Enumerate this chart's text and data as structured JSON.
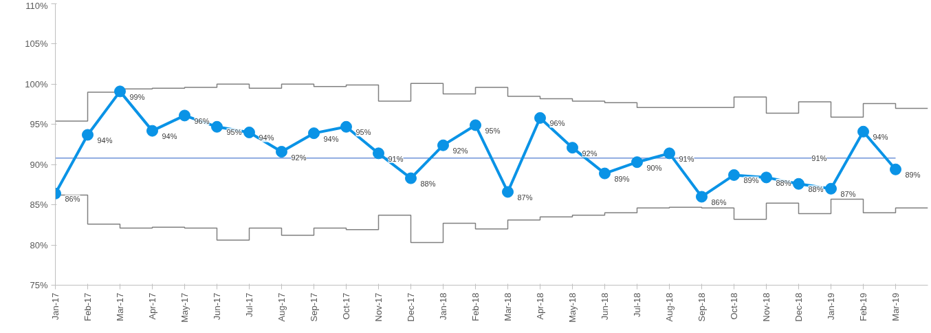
{
  "chart_data": {
    "type": "line",
    "categories": [
      "Jan-17",
      "Feb-17",
      "Mar-17",
      "Apr-17",
      "May-17",
      "Jun-17",
      "Jul-17",
      "Aug-17",
      "Sep-17",
      "Oct-17",
      "Nov-17",
      "Dec-17",
      "Jan-18",
      "Feb-18",
      "Mar-18",
      "Apr-18",
      "May-18",
      "Jun-18",
      "Jul-18",
      "Aug-18",
      "Sep-18",
      "Oct-18",
      "Nov-18",
      "Dec-18",
      "Jan-19",
      "Feb-19",
      "Mar-19"
    ],
    "series": [
      {
        "color": "#0a93e6",
        "marker": "circle",
        "values": [
          86.4,
          93.7,
          99.1,
          94.2,
          96.1,
          94.7,
          94.0,
          91.6,
          93.9,
          94.7,
          91.4,
          88.3,
          92.4,
          94.9,
          86.6,
          95.8,
          92.1,
          88.9,
          90.3,
          91.4,
          86.0,
          88.7,
          88.4,
          87.6,
          87.0,
          94.1,
          89.4
        ],
        "value_labels": [
          "86%",
          "94%",
          "99%",
          "94%",
          "96%",
          "95%",
          "94%",
          "92%",
          "94%",
          "95%",
          "91%",
          "88%",
          "92%",
          "95%",
          "87%",
          "96%",
          "92%",
          "89%",
          "90%",
          "91%",
          "86%",
          "89%",
          "88%",
          "88%",
          "87%",
          "94%",
          "89%"
        ]
      },
      {
        "type": "step",
        "color": "#808080",
        "values": [
          95.4,
          99.0,
          99.4,
          99.5,
          99.6,
          100.0,
          99.5,
          100.0,
          99.7,
          99.9,
          97.9,
          100.1,
          98.8,
          99.6,
          98.5,
          98.2,
          97.9,
          97.7,
          97.1,
          97.1,
          97.1,
          98.4,
          96.4,
          97.8,
          95.9,
          97.6,
          97.0
        ]
      },
      {
        "type": "step",
        "color": "#808080",
        "values": [
          86.2,
          82.6,
          82.1,
          82.2,
          82.1,
          80.6,
          82.1,
          81.2,
          82.1,
          81.9,
          83.7,
          80.3,
          82.7,
          82.0,
          83.1,
          83.5,
          83.7,
          84.0,
          84.6,
          84.7,
          84.6,
          83.2,
          85.2,
          83.9,
          85.7,
          84.0,
          84.6
        ]
      }
    ],
    "ylim": [
      75,
      110
    ],
    "yticks": [
      {
        "value": 75,
        "label": "75%"
      },
      {
        "value": 80,
        "label": "80%"
      },
      {
        "value": 85,
        "label": "85%"
      },
      {
        "value": 90,
        "label": "90%"
      },
      {
        "value": 95,
        "label": "95%"
      },
      {
        "value": 100,
        "label": "100%"
      },
      {
        "value": 105,
        "label": "105%"
      },
      {
        "value": 110,
        "label": "110%"
      }
    ],
    "ref_lines": [
      {
        "axis": "y",
        "value": 90.8,
        "label": "91%",
        "color": "#6f93d8"
      }
    ],
    "grid": false
  }
}
